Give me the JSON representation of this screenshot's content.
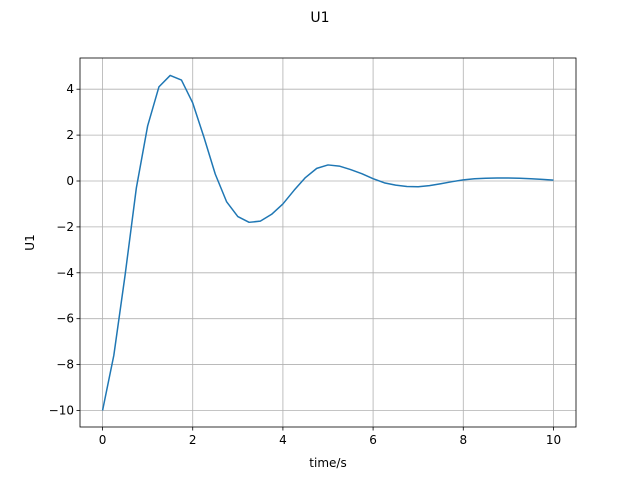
{
  "chart_data": {
    "type": "line",
    "title": "U1",
    "xlabel": "time/s",
    "ylabel": "U1",
    "xlim": [
      -0.5,
      10.5
    ],
    "ylim": [
      -10.72,
      5.36
    ],
    "xticks": [
      0,
      2,
      4,
      6,
      8,
      10
    ],
    "yticks": [
      -10,
      -8,
      -6,
      -4,
      -2,
      0,
      2,
      4
    ],
    "xtick_labels": [
      "0",
      "2",
      "4",
      "6",
      "8",
      "10"
    ],
    "ytick_labels": [
      "−10",
      "−8",
      "−6",
      "−4",
      "−2",
      "0",
      "2",
      "4"
    ],
    "grid": true,
    "series": [
      {
        "color": "#1f77b4",
        "x": [
          0,
          0.25,
          0.5,
          0.75,
          1.0,
          1.25,
          1.5,
          1.75,
          2.0,
          2.25,
          2.5,
          2.75,
          3.0,
          3.25,
          3.5,
          3.75,
          4.0,
          4.25,
          4.5,
          4.75,
          5.0,
          5.25,
          5.5,
          5.75,
          6.0,
          6.25,
          6.5,
          6.75,
          7.0,
          7.25,
          7.5,
          7.75,
          8.0,
          8.25,
          8.5,
          8.75,
          9.0,
          9.25,
          9.5,
          9.75,
          10.0
        ],
        "y": [
          -10.0,
          -7.6,
          -4.1,
          -0.3,
          2.4,
          4.1,
          4.6,
          4.4,
          3.4,
          1.9,
          0.3,
          -0.9,
          -1.55,
          -1.8,
          -1.75,
          -1.45,
          -1.0,
          -0.4,
          0.15,
          0.55,
          0.7,
          0.65,
          0.5,
          0.32,
          0.1,
          -0.08,
          -0.18,
          -0.24,
          -0.25,
          -0.2,
          -0.12,
          -0.03,
          0.05,
          0.1,
          0.12,
          0.13,
          0.13,
          0.12,
          0.1,
          0.07,
          0.04
        ]
      }
    ]
  }
}
